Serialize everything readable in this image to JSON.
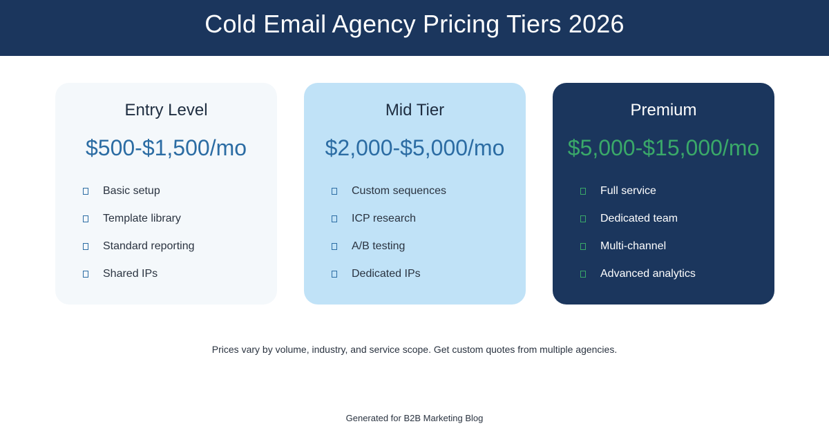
{
  "header": {
    "title": "Cold Email Agency Pricing Tiers 2026"
  },
  "tiers": [
    {
      "name": "Entry Level",
      "price": "$500-$1,500/mo",
      "features": [
        "Basic setup",
        "Template library",
        "Standard reporting",
        "Shared IPs"
      ]
    },
    {
      "name": "Mid Tier",
      "price": "$2,000-$5,000/mo",
      "features": [
        "Custom sequences",
        "ICP research",
        "A/B testing",
        "Dedicated IPs"
      ]
    },
    {
      "name": "Premium",
      "price": "$5,000-$15,000/mo",
      "features": [
        "Full service",
        "Dedicated team",
        "Multi-channel",
        "Advanced analytics"
      ]
    }
  ],
  "note": "Prices vary by volume, industry, and service scope. Get custom quotes from multiple agencies.",
  "footer": "Generated for B2B Marketing Blog",
  "colors": {
    "header_bg": "#1b365d",
    "price_blue": "#2b6ca3",
    "price_green": "#3aa969",
    "mid_card_bg": "#c0e2f7",
    "entry_card_bg": "#f4f8fb"
  },
  "icons": {
    "feature_marker": "check-icon"
  }
}
